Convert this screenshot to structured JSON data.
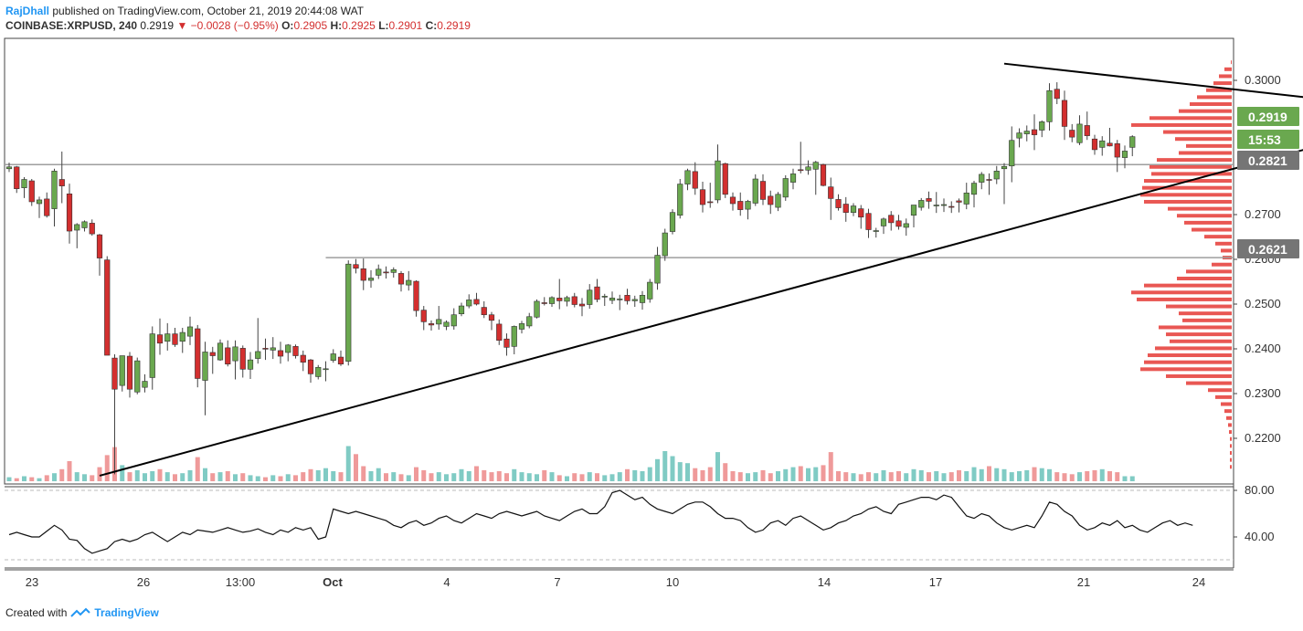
{
  "header": {
    "author": "RajDhall",
    "published_text": "published on TradingView.com, October 21, 2019 20:44:08 WAT",
    "symbol": "COINBASE:XRPUSD, 240",
    "last": "0.2919",
    "change_arrow": "▼",
    "change": "−0.0028 (−0.95%)",
    "o_label": "O:",
    "o_value": "0.2905",
    "h_label": "H:",
    "h_value": "0.2925",
    "l_label": "L:",
    "l_value": "0.2901",
    "c_label": "C:",
    "c_value": "0.2919"
  },
  "footer": {
    "created_with": "Created with",
    "brand": "TradingView"
  },
  "colors": {
    "up": "#6aa84f",
    "down": "#d32f2f",
    "vol_up": "#80cbc4",
    "vol_down": "#ef9a9a",
    "hline": "#9e9e9e",
    "trend": "#000000",
    "last_badge": "#6aa84f",
    "level_badge": "#757575"
  },
  "chart_data": {
    "type": "candlestick",
    "symbol": "XRPUSD",
    "timeframe": "240",
    "y_ticks": [
      "0.3000",
      "0.2700",
      "0.2600",
      "0.2500",
      "0.2400",
      "0.2300",
      "0.2200"
    ],
    "ylim": [
      0.2135,
      0.3065
    ],
    "x_ticks": [
      "23",
      "26",
      "13:00",
      "Oct",
      "4",
      "7",
      "10",
      "14",
      "17",
      "21",
      "24"
    ],
    "price_badges": [
      {
        "label": "0.2919",
        "kind": "last"
      },
      {
        "label": "15:53",
        "kind": "timer"
      },
      {
        "label": "0.2821",
        "kind": "level"
      },
      {
        "label": "0.2621",
        "kind": "level"
      }
    ],
    "horizontal_levels": [
      0.2821,
      0.2621
    ],
    "trendlines": [
      {
        "from": {
          "i": 12,
          "p": 0.2152
        },
        "to": {
          "i": 211,
          "p": 0.3025
        }
      },
      {
        "from": {
          "i": 132,
          "p": 0.3038
        },
        "to": {
          "i": 212,
          "p": 0.2893
        }
      }
    ],
    "rsi": {
      "ticks": [
        "80.00",
        "40.00"
      ],
      "levels": [
        80,
        30
      ],
      "values": [
        42,
        44,
        42,
        40,
        40,
        45,
        50,
        46,
        38,
        37,
        30,
        26,
        28,
        30,
        36,
        38,
        36,
        38,
        42,
        44,
        40,
        36,
        40,
        44,
        42,
        46,
        45,
        44,
        46,
        48,
        46,
        44,
        45,
        47,
        44,
        42,
        46,
        44,
        48,
        46,
        48,
        38,
        40,
        64,
        62,
        60,
        62,
        60,
        58,
        56,
        54,
        50,
        48,
        52,
        54,
        50,
        52,
        56,
        58,
        54,
        52,
        56,
        60,
        58,
        56,
        60,
        62,
        60,
        58,
        60,
        62,
        58,
        56,
        54,
        58,
        62,
        64,
        60,
        60,
        66,
        78,
        80,
        76,
        72,
        74,
        68,
        64,
        62,
        60,
        64,
        68,
        70,
        70,
        66,
        60,
        56,
        56,
        54,
        48,
        44,
        46,
        52,
        54,
        50,
        56,
        58,
        54,
        50,
        46,
        48,
        52,
        54,
        58,
        60,
        64,
        66,
        62,
        60,
        68,
        70,
        72,
        74,
        74,
        72,
        76,
        74,
        66,
        58,
        56,
        60,
        58,
        52,
        48,
        46,
        48,
        50,
        48,
        58,
        70,
        68,
        62,
        58,
        50,
        46,
        48,
        52,
        50,
        54,
        48,
        50,
        46,
        44,
        48,
        52,
        54,
        50,
        52,
        50
      ]
    },
    "candles": [
      [
        0.2812,
        0.2825,
        0.2805,
        0.2816
      ],
      [
        0.2816,
        0.2818,
        0.276,
        0.2769
      ],
      [
        0.2771,
        0.2794,
        0.2749,
        0.2789
      ],
      [
        0.2786,
        0.279,
        0.2732,
        0.2741
      ],
      [
        0.2737,
        0.2752,
        0.2706,
        0.2745
      ],
      [
        0.2747,
        0.2761,
        0.2707,
        0.2711
      ],
      [
        0.2726,
        0.2812,
        0.2688,
        0.2807
      ],
      [
        0.2789,
        0.2849,
        0.2738,
        0.2775
      ],
      [
        0.2758,
        0.278,
        0.2651,
        0.2678
      ],
      [
        0.268,
        0.2695,
        0.2641,
        0.2692
      ],
      [
        0.2685,
        0.2701,
        0.2677,
        0.2698
      ],
      [
        0.2695,
        0.2703,
        0.2668,
        0.2672
      ],
      [
        0.267,
        0.2672,
        0.2582,
        0.262
      ],
      [
        0.2616,
        0.2624,
        0.2411,
        0.2411
      ],
      [
        0.2405,
        0.2413,
        0.2155,
        0.2338
      ],
      [
        0.2346,
        0.241,
        0.2333,
        0.241
      ],
      [
        0.2409,
        0.2418,
        0.232,
        0.2338
      ],
      [
        0.2332,
        0.2406,
        0.2327,
        0.2399
      ],
      [
        0.2342,
        0.237,
        0.2331,
        0.2355
      ],
      [
        0.2363,
        0.2473,
        0.2337,
        0.2457
      ],
      [
        0.2455,
        0.249,
        0.2412,
        0.2437
      ],
      [
        0.2441,
        0.248,
        0.2421,
        0.2457
      ],
      [
        0.2457,
        0.247,
        0.2429,
        0.2434
      ],
      [
        0.2441,
        0.247,
        0.2416,
        0.246
      ],
      [
        0.2452,
        0.2494,
        0.2433,
        0.2472
      ],
      [
        0.2468,
        0.2476,
        0.2342,
        0.2361
      ],
      [
        0.2357,
        0.244,
        0.2282,
        0.2418
      ],
      [
        0.2417,
        0.2429,
        0.2371,
        0.241
      ],
      [
        0.2401,
        0.2445,
        0.2399,
        0.2437
      ],
      [
        0.2427,
        0.2443,
        0.2387,
        0.2392
      ],
      [
        0.2399,
        0.2443,
        0.2359,
        0.2429
      ],
      [
        0.2426,
        0.2432,
        0.2363,
        0.2381
      ],
      [
        0.2381,
        0.2418,
        0.236,
        0.2401
      ],
      [
        0.2404,
        0.2491,
        0.2393,
        0.2419
      ],
      [
        0.2426,
        0.2447,
        0.2401,
        0.2425
      ],
      [
        0.2422,
        0.245,
        0.2403,
        0.2427
      ],
      [
        0.2421,
        0.244,
        0.2393,
        0.2409
      ],
      [
        0.2417,
        0.2435,
        0.2398,
        0.2433
      ],
      [
        0.243,
        0.2434,
        0.2404,
        0.241
      ],
      [
        0.2411,
        0.2421,
        0.2377,
        0.2396
      ],
      [
        0.2401,
        0.2403,
        0.2352,
        0.2371
      ],
      [
        0.2365,
        0.239,
        0.2359,
        0.2385
      ],
      [
        0.238,
        0.2398,
        0.2355,
        0.2382
      ],
      [
        0.24,
        0.2424,
        0.2395,
        0.2414
      ],
      [
        0.2407,
        0.2421,
        0.2388,
        0.2392
      ],
      [
        0.2398,
        0.2615,
        0.2389,
        0.2607
      ],
      [
        0.2606,
        0.2618,
        0.2587,
        0.2598
      ],
      [
        0.2597,
        0.2619,
        0.2551,
        0.2572
      ],
      [
        0.2572,
        0.2594,
        0.2556,
        0.2577
      ],
      [
        0.2583,
        0.2606,
        0.2575,
        0.2596
      ],
      [
        0.259,
        0.2602,
        0.2576,
        0.2588
      ],
      [
        0.2589,
        0.26,
        0.2578,
        0.2595
      ],
      [
        0.2587,
        0.2592,
        0.2548,
        0.2564
      ],
      [
        0.2562,
        0.2592,
        0.255,
        0.2572
      ],
      [
        0.257,
        0.2572,
        0.2494,
        0.2507
      ],
      [
        0.2508,
        0.2517,
        0.2465,
        0.2483
      ],
      [
        0.2479,
        0.2486,
        0.2464,
        0.2476
      ],
      [
        0.2478,
        0.2517,
        0.2466,
        0.2488
      ],
      [
        0.2473,
        0.2486,
        0.2465,
        0.2482
      ],
      [
        0.2474,
        0.2512,
        0.2466,
        0.2498
      ],
      [
        0.25,
        0.2524,
        0.2495,
        0.2517
      ],
      [
        0.2517,
        0.2542,
        0.2512,
        0.253
      ],
      [
        0.2531,
        0.2545,
        0.2518,
        0.2521
      ],
      [
        0.2514,
        0.2527,
        0.2491,
        0.2498
      ],
      [
        0.2498,
        0.2504,
        0.2465,
        0.2486
      ],
      [
        0.2478,
        0.2488,
        0.2433,
        0.2443
      ],
      [
        0.2446,
        0.2458,
        0.241,
        0.2428
      ],
      [
        0.243,
        0.2475,
        0.2413,
        0.2473
      ],
      [
        0.2467,
        0.2485,
        0.2458,
        0.2479
      ],
      [
        0.2474,
        0.2502,
        0.2469,
        0.2494
      ],
      [
        0.2493,
        0.2531,
        0.249,
        0.2527
      ],
      [
        0.2524,
        0.2536,
        0.2518,
        0.2522
      ],
      [
        0.2522,
        0.2538,
        0.2515,
        0.2535
      ],
      [
        0.2534,
        0.2575,
        0.251,
        0.2528
      ],
      [
        0.2527,
        0.2539,
        0.2516,
        0.2535
      ],
      [
        0.2537,
        0.2545,
        0.2514,
        0.252
      ],
      [
        0.2521,
        0.2534,
        0.2495,
        0.2517
      ],
      [
        0.252,
        0.2564,
        0.2511,
        0.2551
      ],
      [
        0.2558,
        0.2575,
        0.2525,
        0.2531
      ],
      [
        0.2536,
        0.2543,
        0.2517,
        0.2538
      ],
      [
        0.2529,
        0.2548,
        0.2521,
        0.2534
      ],
      [
        0.2531,
        0.2541,
        0.2508,
        0.2532
      ],
      [
        0.254,
        0.2554,
        0.252,
        0.2528
      ],
      [
        0.2528,
        0.2539,
        0.2515,
        0.2531
      ],
      [
        0.2524,
        0.2549,
        0.2509,
        0.254
      ],
      [
        0.2532,
        0.2575,
        0.2524,
        0.2568
      ],
      [
        0.2566,
        0.2644,
        0.2552,
        0.2626
      ],
      [
        0.2625,
        0.2683,
        0.2614,
        0.2674
      ],
      [
        0.2677,
        0.2725,
        0.2671,
        0.2718
      ],
      [
        0.2712,
        0.279,
        0.2705,
        0.2779
      ],
      [
        0.2779,
        0.2812,
        0.2766,
        0.2808
      ],
      [
        0.2806,
        0.2826,
        0.2756,
        0.277
      ],
      [
        0.2767,
        0.2784,
        0.2718,
        0.2735
      ],
      [
        0.2741,
        0.2782,
        0.2728,
        0.274
      ],
      [
        0.2745,
        0.2864,
        0.2738,
        0.2829
      ],
      [
        0.2823,
        0.2825,
        0.2749,
        0.2757
      ],
      [
        0.2751,
        0.2761,
        0.2722,
        0.2737
      ],
      [
        0.2742,
        0.2761,
        0.2711,
        0.2724
      ],
      [
        0.2725,
        0.2745,
        0.2703,
        0.2742
      ],
      [
        0.2738,
        0.28,
        0.2732,
        0.279
      ],
      [
        0.2785,
        0.28,
        0.2734,
        0.2746
      ],
      [
        0.2753,
        0.2765,
        0.2715,
        0.2735
      ],
      [
        0.2729,
        0.2762,
        0.2721,
        0.2757
      ],
      [
        0.2751,
        0.2798,
        0.2743,
        0.2791
      ],
      [
        0.2783,
        0.2812,
        0.2768,
        0.2801
      ],
      [
        0.281,
        0.287,
        0.2802,
        0.2809
      ],
      [
        0.2809,
        0.283,
        0.2799,
        0.2816
      ],
      [
        0.2811,
        0.2829,
        0.2756,
        0.2826
      ],
      [
        0.2821,
        0.2823,
        0.2774,
        0.2776
      ],
      [
        0.2773,
        0.2793,
        0.2702,
        0.2748
      ],
      [
        0.2746,
        0.2757,
        0.2722,
        0.2728
      ],
      [
        0.2736,
        0.2751,
        0.2698,
        0.2718
      ],
      [
        0.2718,
        0.2738,
        0.271,
        0.2732
      ],
      [
        0.2726,
        0.2734,
        0.2683,
        0.2708
      ],
      [
        0.2716,
        0.2726,
        0.2663,
        0.2681
      ],
      [
        0.2678,
        0.2685,
        0.2664,
        0.2679
      ],
      [
        0.2689,
        0.2707,
        0.2672,
        0.2704
      ],
      [
        0.2712,
        0.2721,
        0.2679,
        0.2696
      ],
      [
        0.27,
        0.2713,
        0.2681,
        0.2688
      ],
      [
        0.2686,
        0.2705,
        0.2668,
        0.2694
      ],
      [
        0.2712,
        0.2734,
        0.2686,
        0.2734
      ],
      [
        0.2729,
        0.2749,
        0.2722,
        0.2744
      ],
      [
        0.2748,
        0.2763,
        0.2726,
        0.2742
      ],
      [
        0.2733,
        0.2762,
        0.2717,
        0.2734
      ],
      [
        0.2733,
        0.2748,
        0.2719,
        0.2735
      ],
      [
        0.2731,
        0.2742,
        0.2717,
        0.273
      ],
      [
        0.2743,
        0.2748,
        0.2718,
        0.274
      ],
      [
        0.2736,
        0.2782,
        0.2725,
        0.276
      ],
      [
        0.2757,
        0.2786,
        0.2729,
        0.2781
      ],
      [
        0.2783,
        0.2805,
        0.2768,
        0.28
      ],
      [
        0.2789,
        0.2802,
        0.2756,
        0.2788
      ],
      [
        0.279,
        0.2818,
        0.2779,
        0.2807
      ],
      [
        0.2812,
        0.2824,
        0.2736,
        0.2817
      ],
      [
        0.2818,
        0.2903,
        0.2783,
        0.2873
      ],
      [
        0.2878,
        0.2899,
        0.2858,
        0.2889
      ],
      [
        0.2887,
        0.2905,
        0.2871,
        0.2893
      ],
      [
        0.2896,
        0.2929,
        0.2852,
        0.2885
      ],
      [
        0.2895,
        0.2916,
        0.288,
        0.2913
      ],
      [
        0.2913,
        0.2996,
        0.2894,
        0.298
      ],
      [
        0.2983,
        0.2998,
        0.2951,
        0.2963
      ],
      [
        0.2959,
        0.298,
        0.2874,
        0.2903
      ],
      [
        0.2895,
        0.2908,
        0.2869,
        0.288
      ],
      [
        0.2868,
        0.2927,
        0.2863,
        0.2908
      ],
      [
        0.2905,
        0.2935,
        0.2874,
        0.2883
      ],
      [
        0.2876,
        0.2885,
        0.2842,
        0.2853
      ],
      [
        0.2858,
        0.2882,
        0.284,
        0.2872
      ],
      [
        0.2867,
        0.29,
        0.286,
        0.2861
      ],
      [
        0.2866,
        0.2874,
        0.2805,
        0.2837
      ],
      [
        0.2836,
        0.2862,
        0.2813,
        0.285
      ],
      [
        0.2858,
        0.2884,
        0.2839,
        0.2881
      ]
    ],
    "volumes": [
      4,
      3,
      5,
      4,
      3,
      6,
      8,
      12,
      20,
      9,
      7,
      6,
      14,
      26,
      34,
      16,
      9,
      11,
      8,
      10,
      12,
      9,
      7,
      8,
      11,
      24,
      13,
      8,
      9,
      10,
      7,
      8,
      6,
      5,
      4,
      6,
      5,
      7,
      6,
      9,
      12,
      11,
      13,
      10,
      9,
      35,
      27,
      15,
      10,
      13,
      8,
      9,
      7,
      6,
      14,
      11,
      8,
      9,
      7,
      8,
      12,
      10,
      15,
      11,
      9,
      10,
      8,
      12,
      9,
      8,
      7,
      11,
      9,
      6,
      5,
      8,
      7,
      9,
      8,
      6,
      7,
      9,
      12,
      11,
      10,
      14,
      22,
      30,
      25,
      19,
      18,
      13,
      11,
      14,
      29,
      18,
      10,
      9,
      8,
      9,
      11,
      8,
      10,
      12,
      14,
      15,
      13,
      14,
      16,
      29,
      10,
      9,
      8,
      7,
      9,
      8,
      11,
      9,
      10,
      8,
      12,
      11,
      9,
      10,
      8,
      9,
      11,
      10,
      14,
      12,
      15,
      13,
      12,
      9,
      10,
      11,
      14,
      13,
      12,
      9,
      8,
      7,
      9,
      10,
      11,
      12,
      10,
      9
    ]
  }
}
